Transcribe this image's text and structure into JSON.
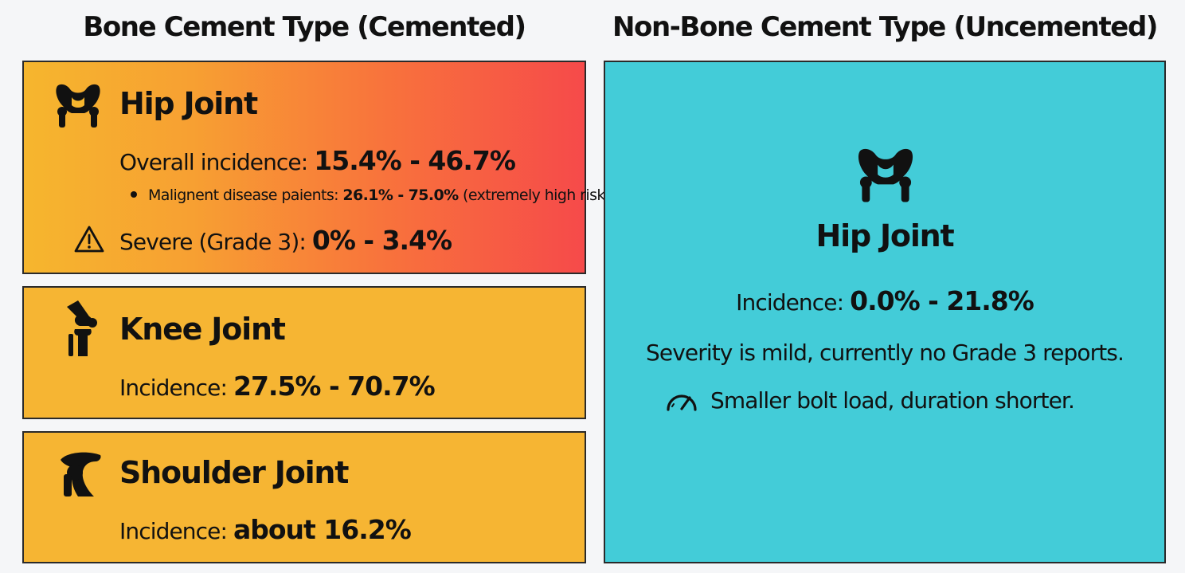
{
  "titles": {
    "left": "Bone Cement Type (Cemented)",
    "right": "Non-Bone Cement Type (Uncemented)"
  },
  "cemented": {
    "hip": {
      "name": "Hip Joint",
      "icon": "hip-joint-icon",
      "overall_label": "Overall incidence: ",
      "overall_value": "15.4% - 46.7%",
      "malignant_label": "Malignent disease paients: ",
      "malignant_value": "26.1% - 75.0%",
      "malignant_note": " (extremely high risk)",
      "severe_icon": "warning-icon",
      "severe_label": "Severe (Grade 3): ",
      "severe_value": "0% - 3.4%"
    },
    "knee": {
      "name": "Knee Joint",
      "icon": "knee-joint-icon",
      "incidence_label": "Incidence: ",
      "incidence_value": "27.5% - 70.7%"
    },
    "shoulder": {
      "name": "Shoulder Joint",
      "icon": "shoulder-joint-icon",
      "incidence_label": "Incidence: ",
      "incidence_value": "about 16.2%"
    }
  },
  "uncemented": {
    "hip": {
      "name": "Hip Joint",
      "icon": "hip-joint-icon",
      "incidence_label": "Incidence: ",
      "incidence_value": "0.0% - 21.8%",
      "severity_note": "Severity is mild, currently no Grade 3 reports.",
      "load_icon": "gauge-icon",
      "load_note": "Smaller bolt load, duration shorter."
    }
  },
  "colors": {
    "cemented_gradient_start": "#f6b62e",
    "cemented_gradient_end": "#f64a4a",
    "cemented_panel": "#f6b533",
    "uncemented_panel": "#43ccd8"
  }
}
